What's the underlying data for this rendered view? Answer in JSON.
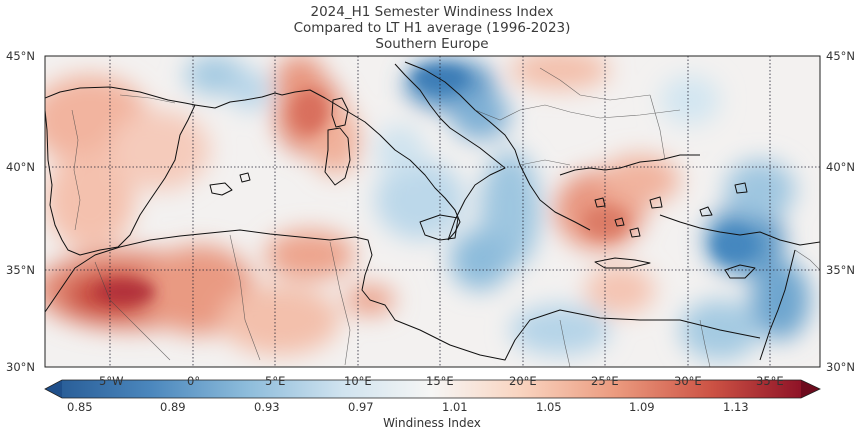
{
  "title": {
    "line1": "2024_H1 Semester Windiness Index",
    "line2": "Compared to LT H1 average (1996-2023)",
    "line3": "Southern Europe"
  },
  "map": {
    "lat_labels": [
      "45°N",
      "40°N",
      "35°N",
      "30°N"
    ],
    "lon_labels": [
      "5°W",
      "0°",
      "5°E",
      "10°E",
      "15°E",
      "20°E",
      "25°E",
      "30°E",
      "35°E"
    ],
    "lon_range": [
      -9,
      38
    ],
    "lat_range": [
      30,
      45
    ],
    "grid": true
  },
  "colorbar": {
    "label": "Windiness Index",
    "ticks": [
      "0.85",
      "0.89",
      "0.93",
      "0.97",
      "1.01",
      "1.05",
      "1.09",
      "1.13"
    ],
    "cmap": "RdBu_r",
    "colors": [
      "#053061",
      "#2166ac",
      "#4393c3",
      "#92c5de",
      "#d1e5f0",
      "#f7f7f7",
      "#fddbc7",
      "#f4a582",
      "#d6604d",
      "#b2182b",
      "#67001f"
    ]
  }
}
